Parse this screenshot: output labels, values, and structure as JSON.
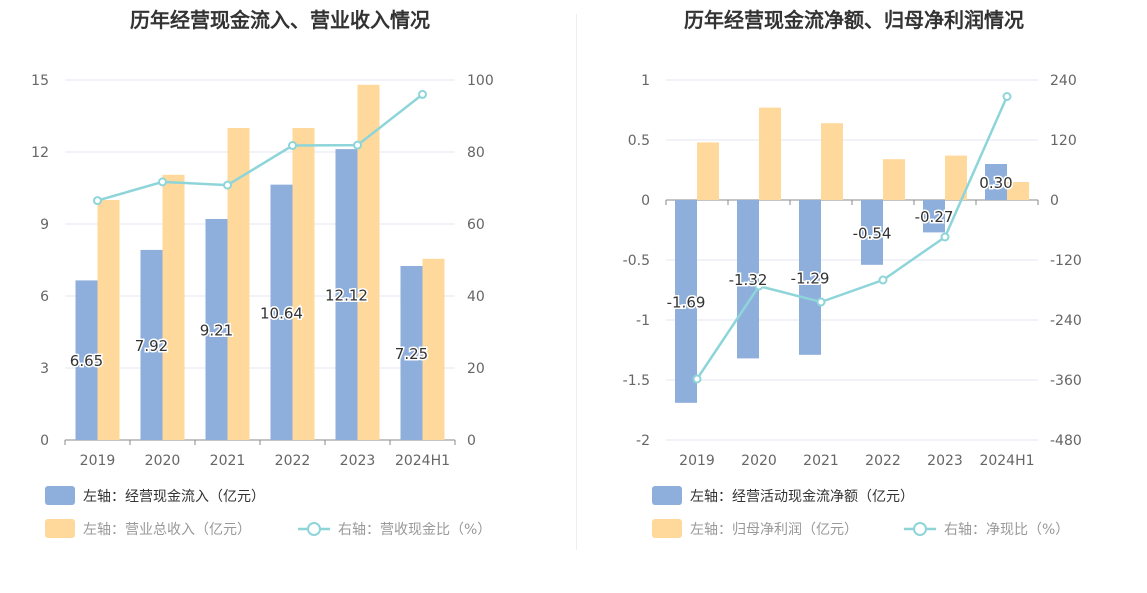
{
  "charts": {
    "left": {
      "title": "历年经营现金流入、营业收入情况",
      "categories": [
        "2019",
        "2020",
        "2021",
        "2022",
        "2023",
        "2024H1"
      ],
      "y_left": {
        "ticks": [
          "15",
          "12",
          "9",
          "6",
          "3",
          "0"
        ]
      },
      "y_right": {
        "ticks": [
          "100",
          "80",
          "60",
          "40",
          "20",
          "0"
        ]
      },
      "legend": {
        "blue": "左轴：经营现金流入（亿元）",
        "orange": "左轴：营业总收入（亿元）",
        "line": "右轴：营收现金比（%）"
      }
    },
    "right": {
      "title": "历年经营现金流净额、归母净利润情况",
      "categories": [
        "2019",
        "2020",
        "2021",
        "2022",
        "2023",
        "2024H1"
      ],
      "y_left": {
        "ticks": [
          "1",
          "0.5",
          "0",
          "-0.5",
          "-1",
          "-1.5",
          "-2"
        ]
      },
      "y_right": {
        "ticks": [
          "240",
          "120",
          "0",
          "-120",
          "-240",
          "-360",
          "-480"
        ]
      },
      "legend": {
        "blue": "左轴：经营活动现金流净额（亿元）",
        "orange": "左轴：归母净利润（亿元）",
        "line": "右轴：净现比（%）"
      }
    }
  },
  "colors": {
    "blue": "#8EAEDC",
    "orange": "#FFD99B",
    "line": "#8ED5DA",
    "text": "#333333",
    "axis": "#666666",
    "grid": "#E3E7F0"
  },
  "chart_data": [
    {
      "type": "bar",
      "title": "历年经营现金流入、营业收入情况",
      "categories": [
        "2019",
        "2020",
        "2021",
        "2022",
        "2023",
        "2024H1"
      ],
      "series": [
        {
          "name": "左轴：经营现金流入（亿元）",
          "axis": "left",
          "type": "bar",
          "values": [
            6.65,
            7.92,
            9.21,
            10.64,
            12.12,
            7.25
          ],
          "labels": [
            "6.65",
            "7.92",
            "9.21",
            "10.64",
            "12.12",
            "7.25"
          ]
        },
        {
          "name": "左轴：营业总收入（亿元）",
          "axis": "left",
          "type": "bar",
          "values": [
            10.0,
            11.05,
            13.0,
            13.0,
            14.8,
            7.55
          ]
        },
        {
          "name": "右轴：营收现金比（%）",
          "axis": "right",
          "type": "line",
          "values": [
            66.5,
            71.7,
            70.8,
            81.8,
            81.9,
            96.0
          ]
        }
      ],
      "ylim_left": [
        0,
        15
      ],
      "ylim_right": [
        0,
        100
      ],
      "grid": true,
      "legend_position": "bottom-left"
    },
    {
      "type": "bar",
      "title": "历年经营现金流净额、归母净利润情况",
      "categories": [
        "2019",
        "2020",
        "2021",
        "2022",
        "2023",
        "2024H1"
      ],
      "series": [
        {
          "name": "左轴：经营活动现金流净额（亿元）",
          "axis": "left",
          "type": "bar",
          "values": [
            -1.69,
            -1.32,
            -1.29,
            -0.54,
            -0.27,
            0.3
          ],
          "labels": [
            "-1.69",
            "-1.32",
            "-1.29",
            "-0.54",
            "-0.27",
            "0.30"
          ]
        },
        {
          "name": "左轴：归母净利润（亿元）",
          "axis": "left",
          "type": "bar",
          "values": [
            0.48,
            0.77,
            0.64,
            0.34,
            0.37,
            0.15
          ]
        },
        {
          "name": "右轴：净现比（%）",
          "axis": "right",
          "type": "line",
          "values": [
            -358,
            -172,
            -204,
            -160,
            -74,
            207
          ]
        }
      ],
      "ylim_left": [
        -2,
        1
      ],
      "ylim_right": [
        -480,
        240
      ],
      "grid": true,
      "legend_position": "bottom-left"
    }
  ]
}
